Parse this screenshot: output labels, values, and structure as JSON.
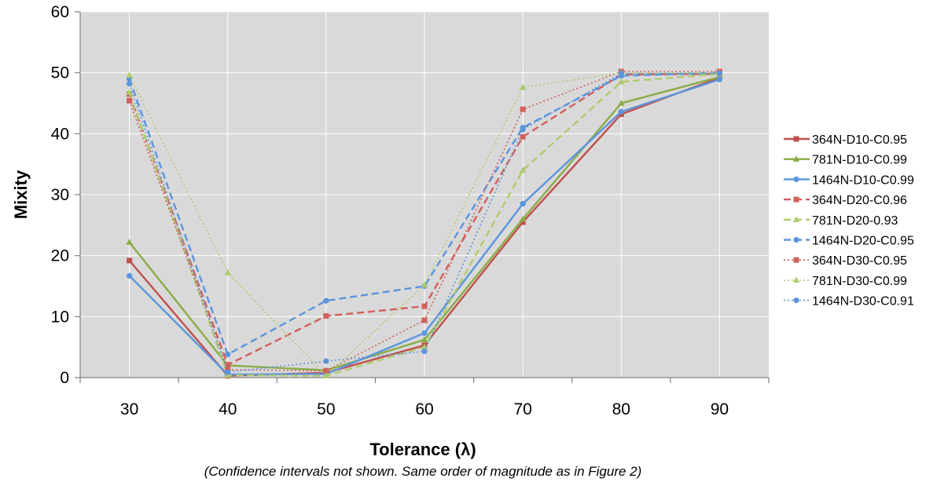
{
  "chart_data": {
    "type": "line",
    "title": "",
    "xlabel": "Tolerance (λ)",
    "ylabel": "Mixity",
    "caption": "(Confidence intervals not shown. Same order of magnitude as in Figure 2)",
    "x": [
      30,
      40,
      50,
      60,
      70,
      80,
      90
    ],
    "xlim": [
      25,
      95
    ],
    "ylim": [
      0,
      60
    ],
    "yticks": [
      0,
      10,
      20,
      30,
      40,
      50,
      60
    ],
    "grid": true,
    "legend": "right",
    "colors": {
      "plot_background": "#d9d9d9",
      "gridline": "#ffffff",
      "red": "#c0504d",
      "green": "#9bbb59",
      "blue": "#4f81bd"
    },
    "series": [
      {
        "name": "364N-D10-C0.95",
        "values": [
          19.2,
          0.3,
          0.8,
          5.3,
          25.5,
          43.2,
          49.2
        ],
        "color": "#c0504d",
        "dash": "solid",
        "marker": "square"
      },
      {
        "name": "781N-D10-C0.99",
        "values": [
          22.2,
          2.0,
          1.2,
          6.2,
          26.0,
          45.0,
          49.3
        ],
        "color": "#8aac48",
        "dash": "solid",
        "marker": "triangle"
      },
      {
        "name": "1464N-D10-C0.99",
        "values": [
          16.7,
          0.5,
          0.6,
          7.3,
          28.5,
          43.6,
          48.9
        ],
        "color": "#5b95dc",
        "dash": "solid",
        "marker": "circle"
      },
      {
        "name": "364N-D20-C0.96",
        "values": [
          46.5,
          2.1,
          10.1,
          11.7,
          39.5,
          49.7,
          49.8
        ],
        "color": "#d1605c",
        "dash": "dashed",
        "marker": "square"
      },
      {
        "name": "781N-D20-0.93",
        "values": [
          46.8,
          0.4,
          0.3,
          5.0,
          34.0,
          48.5,
          49.8
        ],
        "color": "#aecb6e",
        "dash": "dashed",
        "marker": "triangle"
      },
      {
        "name": "1464N-D20-C0.95",
        "values": [
          49.0,
          3.8,
          12.6,
          15.0,
          41.0,
          49.5,
          50.0
        ],
        "color": "#5b95dc",
        "dash": "dashed",
        "marker": "circle"
      },
      {
        "name": "364N-D30-C0.95",
        "values": [
          45.4,
          1.3,
          1.1,
          9.4,
          44.0,
          50.2,
          50.2
        ],
        "color": "#d1605c",
        "dash": "dotted",
        "marker": "square"
      },
      {
        "name": "781N-D30-C0.99",
        "values": [
          49.6,
          17.2,
          0.3,
          15.2,
          47.6,
          50.0,
          50.0
        ],
        "color": "#aecb6e",
        "dash": "dotted",
        "marker": "triangle"
      },
      {
        "name": "1464N-D30-C0.91",
        "values": [
          48.2,
          0.9,
          2.7,
          4.3,
          40.7,
          49.9,
          49.9
        ],
        "color": "#5b95dc",
        "dash": "dotted",
        "marker": "circle"
      }
    ]
  }
}
